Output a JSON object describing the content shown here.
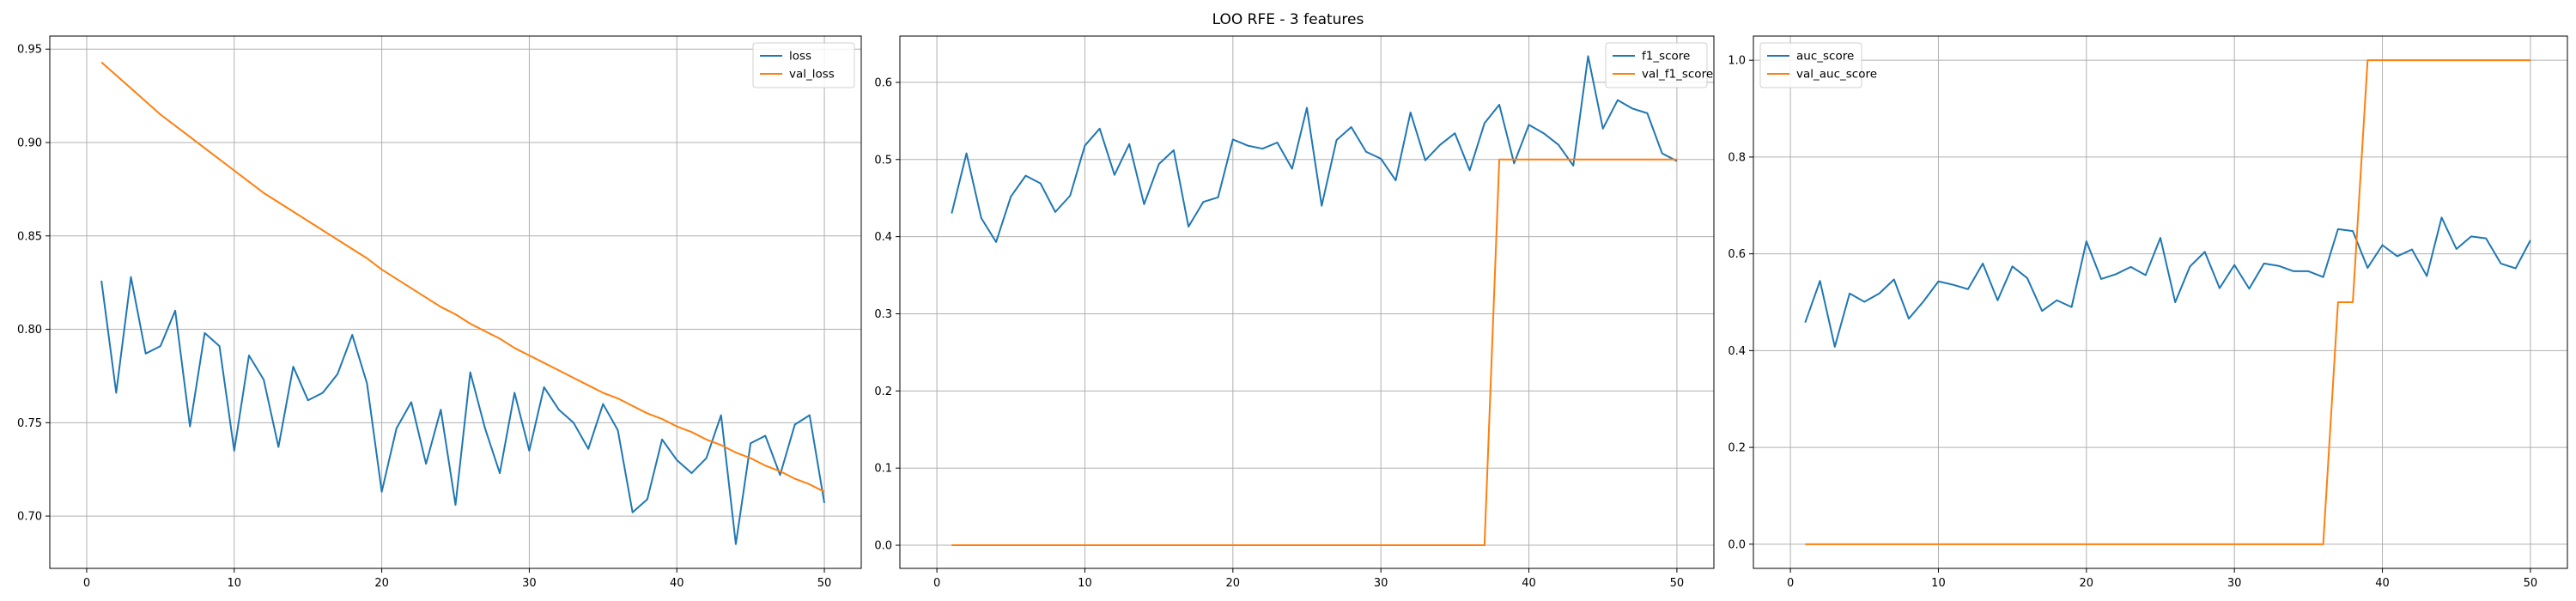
{
  "figure": {
    "title": "LOO RFE - 3 features"
  },
  "chart_data": [
    {
      "type": "line",
      "title": "",
      "xlabel": "",
      "ylabel": "",
      "grid": true,
      "legend_position": "top-right",
      "xlim": [
        -2.5,
        52.5
      ],
      "ylim": [
        0.672,
        0.957
      ],
      "xticks": [
        0,
        10,
        20,
        30,
        40,
        50
      ],
      "yticks": [
        0.7,
        0.75,
        0.8,
        0.85,
        0.9,
        0.95
      ],
      "ytick_labels": [
        "0.70",
        "0.75",
        "0.80",
        "0.85",
        "0.90",
        "0.95"
      ],
      "x": [
        1,
        2,
        3,
        4,
        5,
        6,
        7,
        8,
        9,
        10,
        11,
        12,
        13,
        14,
        15,
        16,
        17,
        18,
        19,
        20,
        21,
        22,
        23,
        24,
        25,
        26,
        27,
        28,
        29,
        30,
        31,
        32,
        33,
        34,
        35,
        36,
        37,
        38,
        39,
        40,
        41,
        42,
        43,
        44,
        45,
        46,
        47,
        48,
        49,
        50
      ],
      "series": [
        {
          "name": "loss",
          "color": "#1f77b4",
          "values": [
            0.826,
            0.766,
            0.828,
            0.787,
            0.791,
            0.81,
            0.748,
            0.798,
            0.791,
            0.735,
            0.786,
            0.773,
            0.737,
            0.78,
            0.762,
            0.766,
            0.776,
            0.797,
            0.771,
            0.713,
            0.747,
            0.761,
            0.728,
            0.757,
            0.706,
            0.777,
            0.747,
            0.723,
            0.766,
            0.735,
            0.769,
            0.757,
            0.75,
            0.736,
            0.76,
            0.746,
            0.702,
            0.709,
            0.741,
            0.73,
            0.723,
            0.731,
            0.754,
            0.685,
            0.739,
            0.743,
            0.722,
            0.749,
            0.754,
            0.707
          ]
        },
        {
          "name": "val_loss",
          "color": "#ff7f0e",
          "values": [
            0.943,
            0.936,
            0.929,
            0.922,
            0.915,
            0.909,
            0.903,
            0.897,
            0.891,
            0.885,
            0.879,
            0.873,
            0.868,
            0.863,
            0.858,
            0.853,
            0.848,
            0.843,
            0.838,
            0.832,
            0.827,
            0.822,
            0.817,
            0.812,
            0.808,
            0.803,
            0.799,
            0.795,
            0.79,
            0.786,
            0.782,
            0.778,
            0.774,
            0.77,
            0.766,
            0.763,
            0.759,
            0.755,
            0.752,
            0.748,
            0.745,
            0.741,
            0.738,
            0.734,
            0.731,
            0.727,
            0.724,
            0.72,
            0.717,
            0.713
          ]
        }
      ]
    },
    {
      "type": "line",
      "title": "",
      "xlabel": "",
      "ylabel": "",
      "grid": true,
      "legend_position": "top-right",
      "xlim": [
        -2.5,
        52.5
      ],
      "ylim": [
        -0.03,
        0.66
      ],
      "xticks": [
        0,
        10,
        20,
        30,
        40,
        50
      ],
      "yticks": [
        0.0,
        0.1,
        0.2,
        0.3,
        0.4,
        0.5,
        0.6
      ],
      "ytick_labels": [
        "0.0",
        "0.1",
        "0.2",
        "0.3",
        "0.4",
        "0.5",
        "0.6"
      ],
      "x": [
        1,
        2,
        3,
        4,
        5,
        6,
        7,
        8,
        9,
        10,
        11,
        12,
        13,
        14,
        15,
        16,
        17,
        18,
        19,
        20,
        21,
        22,
        23,
        24,
        25,
        26,
        27,
        28,
        29,
        30,
        31,
        32,
        33,
        34,
        35,
        36,
        37,
        38,
        39,
        40,
        41,
        42,
        43,
        44,
        45,
        46,
        47,
        48,
        49,
        50
      ],
      "series": [
        {
          "name": "f1_score",
          "color": "#1f77b4",
          "values": [
            0.43,
            0.508,
            0.424,
            0.393,
            0.452,
            0.479,
            0.469,
            0.432,
            0.453,
            0.518,
            0.54,
            0.48,
            0.52,
            0.442,
            0.494,
            0.512,
            0.413,
            0.445,
            0.451,
            0.526,
            0.518,
            0.514,
            0.522,
            0.488,
            0.567,
            0.44,
            0.525,
            0.542,
            0.51,
            0.501,
            0.473,
            0.561,
            0.499,
            0.519,
            0.534,
            0.486,
            0.547,
            0.571,
            0.495,
            0.545,
            0.534,
            0.519,
            0.492,
            0.634,
            0.54,
            0.577,
            0.566,
            0.56,
            0.508,
            0.498
          ]
        },
        {
          "name": "val_f1_score",
          "color": "#ff7f0e",
          "values": [
            0,
            0,
            0,
            0,
            0,
            0,
            0,
            0,
            0,
            0,
            0,
            0,
            0,
            0,
            0,
            0,
            0,
            0,
            0,
            0,
            0,
            0,
            0,
            0,
            0,
            0,
            0,
            0,
            0,
            0,
            0,
            0,
            0,
            0,
            0,
            0,
            0,
            0.5,
            0.5,
            0.5,
            0.5,
            0.5,
            0.5,
            0.5,
            0.5,
            0.5,
            0.5,
            0.5,
            0.5,
            0.5
          ]
        }
      ]
    },
    {
      "type": "line",
      "title": "",
      "xlabel": "",
      "ylabel": "",
      "grid": true,
      "legend_position": "top-left",
      "xlim": [
        -2.5,
        52.5
      ],
      "ylim": [
        -0.05,
        1.05
      ],
      "xticks": [
        0,
        10,
        20,
        30,
        40,
        50
      ],
      "yticks": [
        0.0,
        0.2,
        0.4,
        0.6,
        0.8,
        1.0
      ],
      "ytick_labels": [
        "0.0",
        "0.2",
        "0.4",
        "0.6",
        "0.8",
        "1.0"
      ],
      "x": [
        1,
        2,
        3,
        4,
        5,
        6,
        7,
        8,
        9,
        10,
        11,
        12,
        13,
        14,
        15,
        16,
        17,
        18,
        19,
        20,
        21,
        22,
        23,
        24,
        25,
        26,
        27,
        28,
        29,
        30,
        31,
        32,
        33,
        34,
        35,
        36,
        37,
        38,
        39,
        40,
        41,
        42,
        43,
        44,
        45,
        46,
        47,
        48,
        49,
        50
      ],
      "series": [
        {
          "name": "auc_score",
          "color": "#1f77b4",
          "values": [
            0.458,
            0.544,
            0.408,
            0.518,
            0.501,
            0.518,
            0.547,
            0.466,
            0.502,
            0.543,
            0.536,
            0.527,
            0.58,
            0.504,
            0.574,
            0.55,
            0.482,
            0.504,
            0.49,
            0.626,
            0.548,
            0.558,
            0.573,
            0.556,
            0.633,
            0.5,
            0.574,
            0.604,
            0.529,
            0.577,
            0.528,
            0.58,
            0.575,
            0.564,
            0.564,
            0.552,
            0.651,
            0.647,
            0.571,
            0.618,
            0.595,
            0.609,
            0.554,
            0.675,
            0.61,
            0.636,
            0.632,
            0.58,
            0.57,
            0.628
          ]
        },
        {
          "name": "val_auc_score",
          "color": "#ff7f0e",
          "values": [
            0,
            0,
            0,
            0,
            0,
            0,
            0,
            0,
            0,
            0,
            0,
            0,
            0,
            0,
            0,
            0,
            0,
            0,
            0,
            0,
            0,
            0,
            0,
            0,
            0,
            0,
            0,
            0,
            0,
            0,
            0,
            0,
            0,
            0,
            0,
            0,
            0.5,
            0.5,
            1,
            1,
            1,
            1,
            1,
            1,
            1,
            1,
            1,
            1,
            1,
            1
          ]
        }
      ]
    }
  ]
}
